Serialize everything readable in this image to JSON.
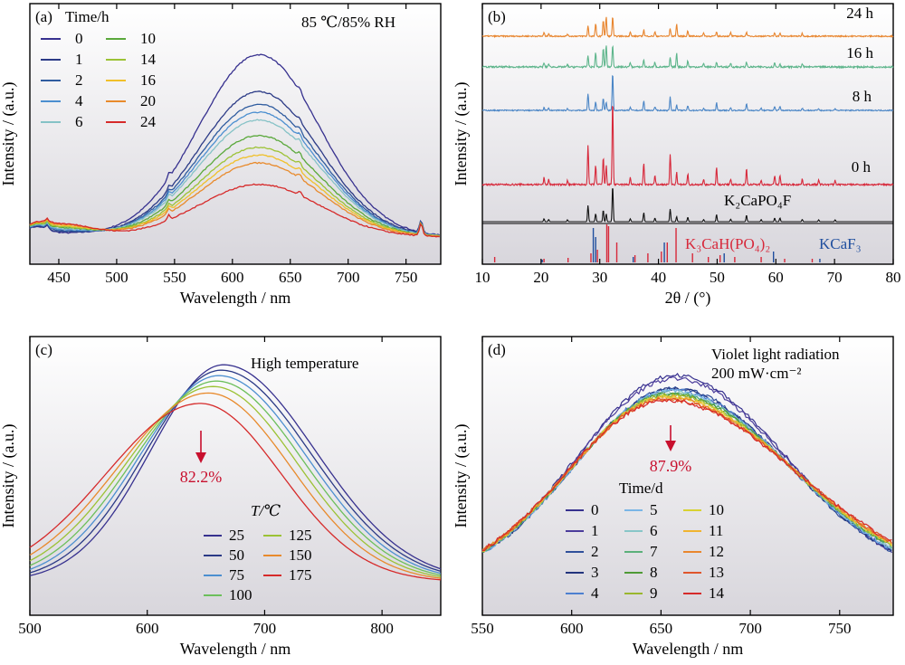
{
  "figure": {
    "title": ""
  },
  "chart_data": [
    {
      "panel": "(a)",
      "type": "line",
      "annotation": "85 ℃/85% RH",
      "xlabel": "Wavelength / nm",
      "ylabel": "Intensity / (a.u.)",
      "xlim": [
        425,
        780
      ],
      "xticks": [
        450,
        500,
        550,
        600,
        650,
        700,
        750
      ],
      "legend_title": "Time/h",
      "legend_placement": "top-left",
      "peak_nm": 623,
      "series": [
        {
          "name": "0",
          "peak": 0.935,
          "color": "#37318f"
        },
        {
          "name": "1",
          "peak": 0.745,
          "color": "#2b3a86"
        },
        {
          "name": "2",
          "peak": 0.68,
          "color": "#2f5c9f"
        },
        {
          "name": "4",
          "peak": 0.64,
          "color": "#4c8fd0"
        },
        {
          "name": "6",
          "peak": 0.6,
          "color": "#85c2c6"
        },
        {
          "name": "10",
          "peak": 0.52,
          "color": "#5aa83b"
        },
        {
          "name": "14",
          "peak": 0.46,
          "color": "#9cc235"
        },
        {
          "name": "16",
          "peak": 0.42,
          "color": "#f0c02a"
        },
        {
          "name": "20",
          "peak": 0.38,
          "color": "#e88a2c"
        },
        {
          "name": "24",
          "peak": 0.27,
          "color": "#d62a2a"
        }
      ]
    },
    {
      "panel": "(b)",
      "type": "line",
      "xlabel": "2θ / (°)",
      "ylabel": "Intensity / (a.u.)",
      "xlim": [
        10,
        80
      ],
      "xticks": [
        10,
        20,
        30,
        40,
        50,
        60,
        70,
        80
      ],
      "patterns": [
        {
          "name": "24 h",
          "color": "#e8852e"
        },
        {
          "name": "16 h",
          "color": "#5db58b"
        },
        {
          "name": "8 h",
          "color": "#4b86c6"
        },
        {
          "name": "0 h",
          "color": "#d7283a"
        },
        {
          "name": "K₂CaPO₄F",
          "color": "#111111"
        }
      ],
      "reference_labels": [
        {
          "name": "K₃CaH(PO₄)₂",
          "color": "#d7283a"
        },
        {
          "name": "KCaF₃",
          "color": "#1f4e9e"
        }
      ],
      "main_peaks_2theta": [
        28.0,
        29.3,
        30.6,
        31.1,
        32.2,
        37.5,
        42.0,
        43.1,
        49.9,
        55.0,
        59.8
      ]
    },
    {
      "panel": "(c)",
      "type": "line",
      "annotation": "High temperature",
      "xlabel": "Wavelength / nm",
      "ylabel": "Intensity / (a.u.)",
      "xlim": [
        500,
        850
      ],
      "xticks": [
        500,
        600,
        700,
        800
      ],
      "legend_title": "T/℃",
      "legend_placement": "bottom-center",
      "arrow_label": "82.2%",
      "series": [
        {
          "name": "25",
          "peak": 1.0,
          "center": 665,
          "color": "#37318f"
        },
        {
          "name": "50",
          "peak": 0.975,
          "center": 663,
          "color": "#2b3a86"
        },
        {
          "name": "75",
          "peak": 0.95,
          "center": 661,
          "color": "#4c8fd0"
        },
        {
          "name": "100",
          "peak": 0.925,
          "center": 659,
          "color": "#6cbf5b"
        },
        {
          "name": "125",
          "peak": 0.9,
          "center": 656,
          "color": "#9cc235"
        },
        {
          "name": "150",
          "peak": 0.87,
          "center": 652,
          "color": "#e88a2c"
        },
        {
          "name": "175",
          "peak": 0.822,
          "center": 645,
          "color": "#d62a2a"
        }
      ]
    },
    {
      "panel": "(d)",
      "type": "line",
      "annotation": "Violet light radiation",
      "annotation2": "200 mW·cm⁻²",
      "xlabel": "Wavelength / nm",
      "ylabel": "Intensity / (a.u.)",
      "xlim": [
        550,
        780
      ],
      "xticks": [
        550,
        600,
        650,
        700,
        750
      ],
      "legend_title": "Time/d",
      "legend_placement": "bottom-center",
      "arrow_label": "87.9%",
      "series": [
        {
          "name": "0",
          "peak": 1.0,
          "color": "#37318f"
        },
        {
          "name": "1",
          "peak": 0.985,
          "color": "#4b3c9b"
        },
        {
          "name": "2",
          "peak": 0.94,
          "color": "#2f4f9a"
        },
        {
          "name": "3",
          "peak": 0.935,
          "color": "#22347d"
        },
        {
          "name": "4",
          "peak": 0.93,
          "color": "#4d80d0"
        },
        {
          "name": "5",
          "peak": 0.925,
          "color": "#7ab6e6"
        },
        {
          "name": "6",
          "peak": 0.92,
          "color": "#88c6c8"
        },
        {
          "name": "7",
          "peak": 0.915,
          "color": "#5bb07a"
        },
        {
          "name": "8",
          "peak": 0.91,
          "color": "#4f9a36"
        },
        {
          "name": "9",
          "peak": 0.905,
          "color": "#9ab72e"
        },
        {
          "name": "10",
          "peak": 0.9,
          "color": "#d8d232"
        },
        {
          "name": "11",
          "peak": 0.895,
          "color": "#f0b430"
        },
        {
          "name": "12",
          "peak": 0.89,
          "color": "#e9862d"
        },
        {
          "name": "13",
          "peak": 0.884,
          "color": "#e0562c"
        },
        {
          "name": "14",
          "peak": 0.879,
          "color": "#d62a2a"
        }
      ]
    }
  ]
}
